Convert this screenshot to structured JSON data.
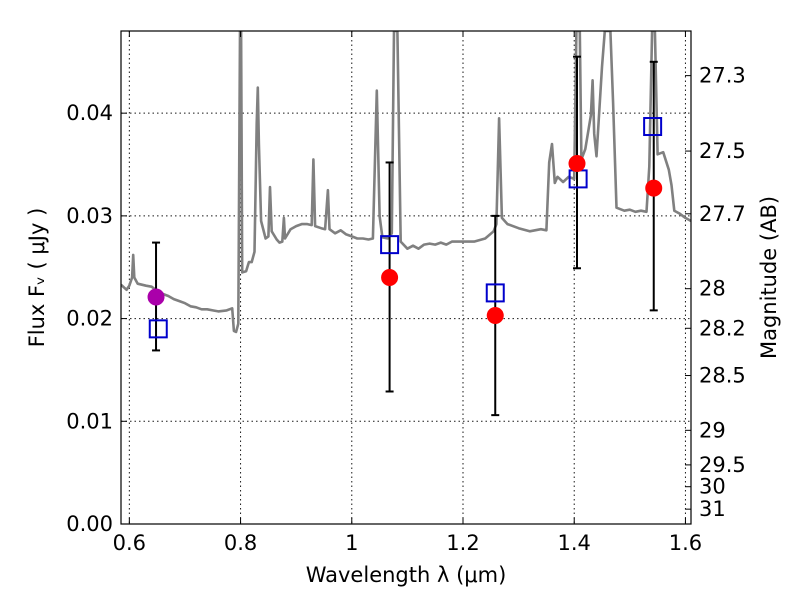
{
  "chart_data": {
    "type": "scatter",
    "title": "",
    "xlabel": "Wavelength  λ (μm)",
    "ylabel": "Flux  Fᵥ  ( μJy )",
    "y2label": "Magnitude (AB)",
    "xlim": [
      0.585,
      1.61
    ],
    "ylim": [
      0.0,
      0.048
    ],
    "grid": true,
    "x_ticks": [
      0.6,
      0.8,
      1.0,
      1.2,
      1.4,
      1.6
    ],
    "x_tick_labels": [
      "0.6",
      "0.8",
      "1",
      "1.2",
      "1.4",
      "1.6"
    ],
    "y_ticks": [
      0.0,
      0.01,
      0.02,
      0.03,
      0.04
    ],
    "y_tick_labels": [
      "0.00",
      "0.01",
      "0.02",
      "0.03",
      "0.04"
    ],
    "y2_ticks": [
      27.3,
      27.5,
      27.7,
      28,
      28.2,
      28.5,
      29,
      29.5,
      30,
      31
    ],
    "y2_tick_labels": [
      "27.3",
      "27.5",
      "27.7",
      "28",
      "28.2",
      "28.5",
      "29",
      "29.5",
      "30",
      "31"
    ],
    "colors": {
      "spectrum": "#808080",
      "observed": "#ff0000",
      "observed_optical": "#aa00aa",
      "model": "#0000cc"
    },
    "series": [
      {
        "type": "line",
        "points": [
          [
            0.585,
            0.0233
          ],
          [
            0.595,
            0.0228
          ],
          [
            0.6,
            0.0232
          ],
          [
            0.605,
            0.024
          ],
          [
            0.607,
            0.0262
          ],
          [
            0.609,
            0.024
          ],
          [
            0.615,
            0.0234
          ],
          [
            0.63,
            0.0232
          ],
          [
            0.64,
            0.0231
          ],
          [
            0.65,
            0.0227
          ],
          [
            0.66,
            0.0224
          ],
          [
            0.67,
            0.0222
          ],
          [
            0.68,
            0.0219
          ],
          [
            0.69,
            0.0217
          ],
          [
            0.7,
            0.0215
          ],
          [
            0.71,
            0.0212
          ],
          [
            0.72,
            0.0211
          ],
          [
            0.73,
            0.0209
          ],
          [
            0.74,
            0.0209
          ],
          [
            0.75,
            0.0208
          ],
          [
            0.76,
            0.0207
          ],
          [
            0.775,
            0.0208
          ],
          [
            0.785,
            0.021
          ],
          [
            0.788,
            0.0188
          ],
          [
            0.792,
            0.0187
          ],
          [
            0.796,
            0.0195
          ],
          [
            0.799,
            0.048
          ],
          [
            0.801,
            0.048
          ],
          [
            0.803,
            0.0245
          ],
          [
            0.81,
            0.0246
          ],
          [
            0.815,
            0.0255
          ],
          [
            0.82,
            0.0255
          ],
          [
            0.825,
            0.0265
          ],
          [
            0.829,
            0.039
          ],
          [
            0.831,
            0.0425
          ],
          [
            0.833,
            0.037
          ],
          [
            0.837,
            0.0295
          ],
          [
            0.845,
            0.0278
          ],
          [
            0.85,
            0.028
          ],
          [
            0.853,
            0.0328
          ],
          [
            0.856,
            0.0285
          ],
          [
            0.865,
            0.0277
          ],
          [
            0.87,
            0.0274
          ],
          [
            0.875,
            0.0275
          ],
          [
            0.878,
            0.0298
          ],
          [
            0.88,
            0.0278
          ],
          [
            0.89,
            0.0287
          ],
          [
            0.9,
            0.029
          ],
          [
            0.91,
            0.0292
          ],
          [
            0.92,
            0.0292
          ],
          [
            0.928,
            0.0291
          ],
          [
            0.931,
            0.0355
          ],
          [
            0.934,
            0.029
          ],
          [
            0.945,
            0.0288
          ],
          [
            0.952,
            0.0287
          ],
          [
            0.957,
            0.0325
          ],
          [
            0.96,
            0.0287
          ],
          [
            0.97,
            0.0283
          ],
          [
            0.98,
            0.0286
          ],
          [
            0.99,
            0.0282
          ],
          [
            1.0,
            0.028
          ],
          [
            1.01,
            0.0278
          ],
          [
            1.02,
            0.0278
          ],
          [
            1.03,
            0.0277
          ],
          [
            1.038,
            0.0278
          ],
          [
            1.045,
            0.0422
          ],
          [
            1.05,
            0.03
          ],
          [
            1.055,
            0.0279
          ],
          [
            1.065,
            0.0278
          ],
          [
            1.072,
            0.0283
          ],
          [
            1.076,
            0.048
          ],
          [
            1.082,
            0.048
          ],
          [
            1.088,
            0.0275
          ],
          [
            1.1,
            0.0268
          ],
          [
            1.11,
            0.0271
          ],
          [
            1.12,
            0.0268
          ],
          [
            1.13,
            0.0272
          ],
          [
            1.14,
            0.0273
          ],
          [
            1.15,
            0.0272
          ],
          [
            1.16,
            0.0274
          ],
          [
            1.17,
            0.0272
          ],
          [
            1.18,
            0.0275
          ],
          [
            1.2,
            0.0275
          ],
          [
            1.22,
            0.0275
          ],
          [
            1.24,
            0.0278
          ],
          [
            1.255,
            0.0285
          ],
          [
            1.26,
            0.0292
          ],
          [
            1.265,
            0.0395
          ],
          [
            1.27,
            0.0298
          ],
          [
            1.28,
            0.0292
          ],
          [
            1.3,
            0.0288
          ],
          [
            1.32,
            0.0285
          ],
          [
            1.34,
            0.0287
          ],
          [
            1.35,
            0.0286
          ],
          [
            1.355,
            0.0352
          ],
          [
            1.36,
            0.037
          ],
          [
            1.365,
            0.0332
          ],
          [
            1.37,
            0.0338
          ],
          [
            1.38,
            0.0333
          ],
          [
            1.39,
            0.0338
          ],
          [
            1.4,
            0.0336
          ],
          [
            1.404,
            0.048
          ],
          [
            1.41,
            0.048
          ],
          [
            1.413,
            0.0355
          ],
          [
            1.42,
            0.0365
          ],
          [
            1.43,
            0.0398
          ],
          [
            1.433,
            0.0432
          ],
          [
            1.436,
            0.038
          ],
          [
            1.44,
            0.0358
          ],
          [
            1.45,
            0.0445
          ],
          [
            1.455,
            0.048
          ],
          [
            1.465,
            0.048
          ],
          [
            1.47,
            0.041
          ],
          [
            1.476,
            0.0308
          ],
          [
            1.49,
            0.0305
          ],
          [
            1.5,
            0.0306
          ],
          [
            1.51,
            0.0304
          ],
          [
            1.52,
            0.0305
          ],
          [
            1.53,
            0.0304
          ],
          [
            1.535,
            0.0348
          ],
          [
            1.54,
            0.048
          ],
          [
            1.545,
            0.048
          ],
          [
            1.55,
            0.036
          ],
          [
            1.56,
            0.0362
          ],
          [
            1.57,
            0.0345
          ],
          [
            1.575,
            0.033
          ],
          [
            1.58,
            0.0305
          ],
          [
            1.59,
            0.0302
          ],
          [
            1.6,
            0.0298
          ],
          [
            1.61,
            0.0295
          ]
        ]
      },
      {
        "type": "scatter-errorbar",
        "marker": "circle",
        "points": [
          {
            "x": 0.648,
            "y": 0.0221,
            "ylo": 0.0169,
            "yhi": 0.0274
          },
          {
            "x": 1.068,
            "y": 0.024,
            "ylo": 0.0129,
            "yhi": 0.0352
          },
          {
            "x": 1.258,
            "y": 0.0203,
            "ylo": 0.0106,
            "yhi": 0.03
          },
          {
            "x": 1.405,
            "y": 0.0351,
            "ylo": 0.0249,
            "yhi": 0.0455
          },
          {
            "x": 1.543,
            "y": 0.0327,
            "ylo": 0.0208,
            "yhi": 0.045
          }
        ],
        "point_colors": [
          "#aa00aa",
          "#ff0000",
          "#ff0000",
          "#ff0000",
          "#ff0000"
        ]
      },
      {
        "type": "scatter",
        "marker": "square-open",
        "points": [
          [
            0.652,
            0.019
          ],
          [
            1.068,
            0.0272
          ],
          [
            1.258,
            0.0225
          ],
          [
            1.407,
            0.0336
          ],
          [
            1.541,
            0.0387
          ]
        ]
      }
    ]
  }
}
